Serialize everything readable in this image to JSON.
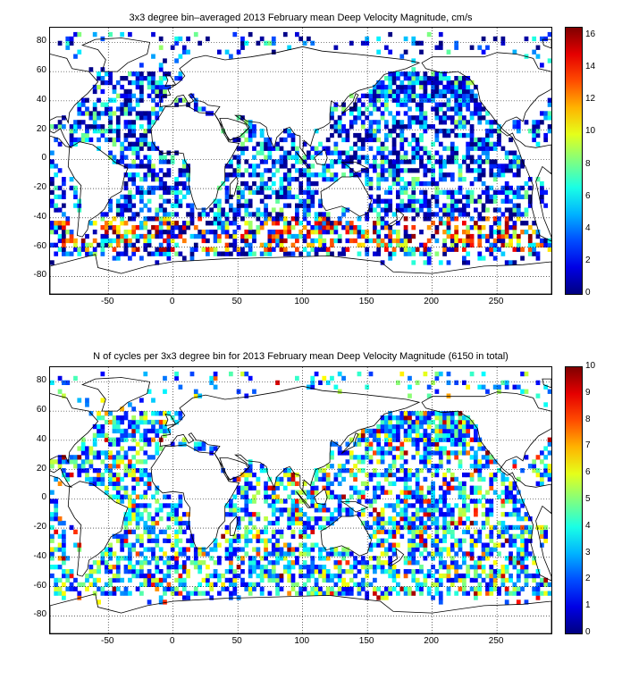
{
  "panels": [
    {
      "id": "velocity",
      "title": "3x3 degree bin–averaged 2013 February mean Deep Velocity Magnitude, cm/s",
      "x_ticks": [
        "-50",
        "0",
        "50",
        "100",
        "150",
        "200",
        "250"
      ],
      "y_ticks": [
        "80",
        "60",
        "40",
        "20",
        "0",
        "-20",
        "-40",
        "-60",
        "-80"
      ],
      "colorbar_ticks": [
        "16",
        "14",
        "12",
        "10",
        "8",
        "6",
        "4",
        "2",
        "0"
      ]
    },
    {
      "id": "cycles",
      "title": "N of cycles per 3x3 degree bin for 2013 February mean Deep Velocity Magnitude (6150 in total)",
      "x_ticks": [
        "-50",
        "0",
        "50",
        "100",
        "150",
        "200",
        "250"
      ],
      "y_ticks": [
        "80",
        "60",
        "40",
        "20",
        "0",
        "-20",
        "-40",
        "-60",
        "-80"
      ],
      "colorbar_ticks": [
        "10",
        "9",
        "8",
        "7",
        "6",
        "5",
        "4",
        "3",
        "2",
        "1",
        "0"
      ]
    }
  ],
  "colormap": "jet",
  "colors": {
    "jet_low": "#00008f",
    "jet_mid": "#7fff7f",
    "jet_high": "#800000"
  }
}
